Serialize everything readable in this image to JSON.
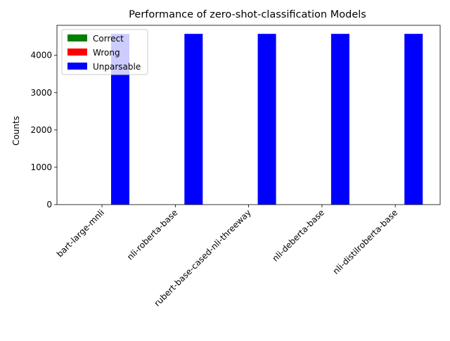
{
  "chart_data": {
    "type": "bar",
    "title": "Performance of zero-shot-classification Models",
    "xlabel": "",
    "ylabel": "Counts",
    "categories": [
      "bart-large-mnli",
      "nli-roberta-base",
      "rubert-base-cased-nli-threeway",
      "nli-deberta-base",
      "nli-distilroberta-base"
    ],
    "series": [
      {
        "name": "Correct",
        "color": "#008000",
        "values": [
          0,
          0,
          0,
          0,
          0
        ]
      },
      {
        "name": "Wrong",
        "color": "#ff0000",
        "values": [
          0,
          0,
          0,
          0,
          0
        ]
      },
      {
        "name": "Unparsable",
        "color": "#0000ff",
        "values": [
          4575,
          4575,
          4575,
          4575,
          4575
        ]
      }
    ],
    "ylim": [
      0,
      4804
    ],
    "yticks": [
      0,
      1000,
      2000,
      3000,
      4000
    ],
    "grid": false,
    "legend_position": "top-left"
  }
}
